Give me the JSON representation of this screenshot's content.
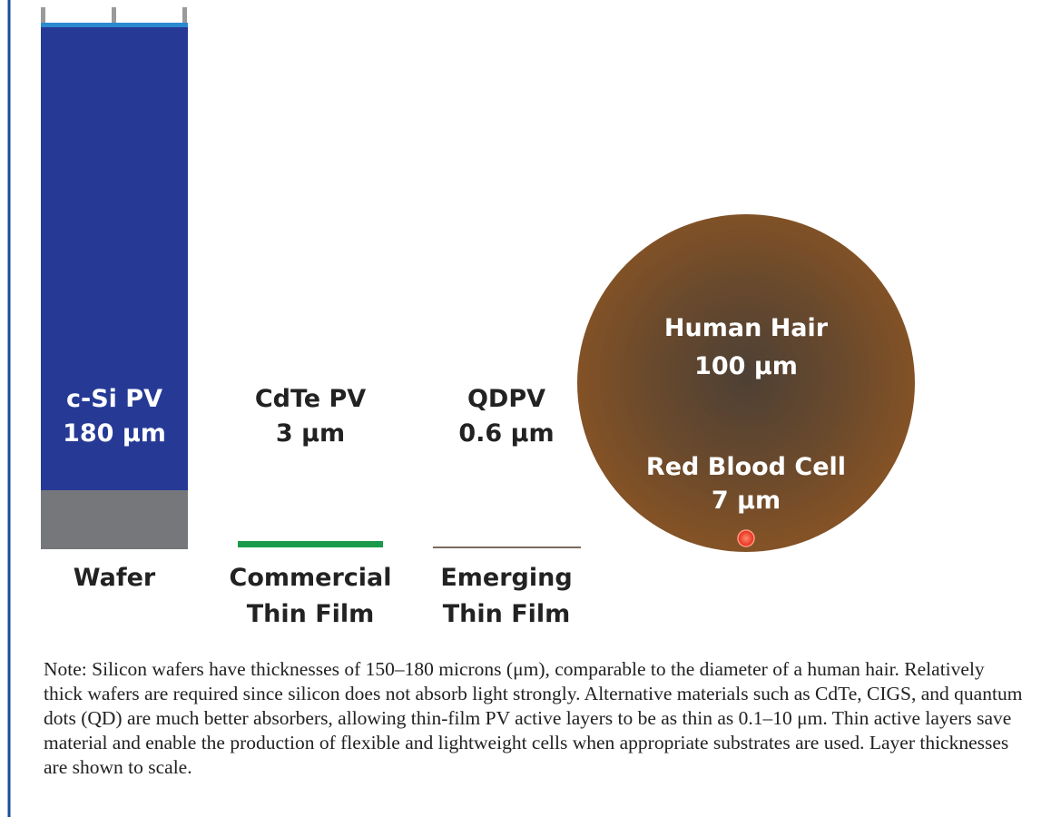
{
  "items": [
    {
      "name": "c-Si PV",
      "thickness": "180 μm",
      "category": [
        "Wafer"
      ]
    },
    {
      "name": "CdTe PV",
      "thickness": "3 μm",
      "category": [
        "Commercial",
        "Thin Film"
      ]
    },
    {
      "name": "QDPV",
      "thickness": "0.6 μm",
      "category": [
        "Emerging",
        "Thin Film"
      ]
    }
  ],
  "comparison": {
    "name": "Human Hair",
    "size": "100 μm",
    "cell_name": "Red Blood Cell",
    "cell_size": "7 μm"
  },
  "note": "Note: Silicon wafers have thicknesses of 150–180 microns (μm), comparable to the diameter of a human hair. Relatively thick wafers are required since silicon does not absorb light strongly. Alternative materials such as CdTe, CIGS, and quantum dots (QD) are much better absorbers, allowing thin-film PV active layers to be as thin as 0.1–10 μm. Thin active layers save material and enable the production of flexible and lightweight cells when appropriate substrates are used. Layer thicknesses are shown to scale."
}
